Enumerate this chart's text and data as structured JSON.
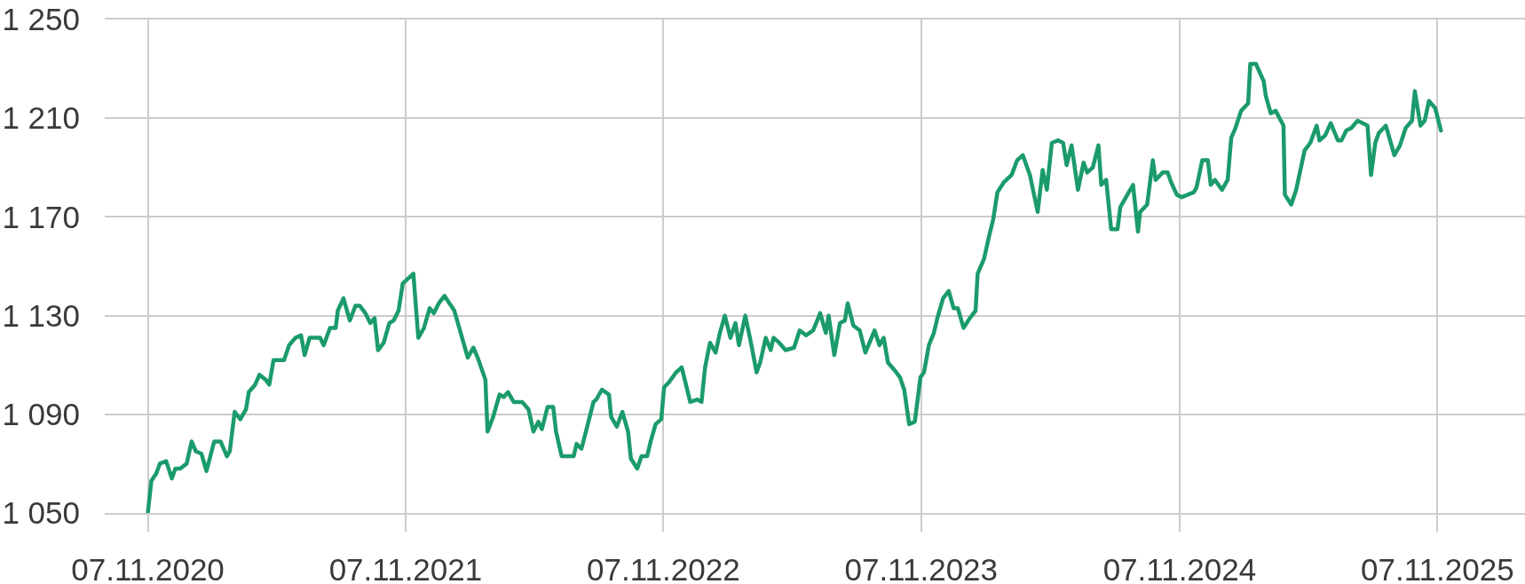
{
  "chart_data": {
    "type": "line",
    "x": [
      "2020-11-07",
      "2020-11-12",
      "2020-11-19",
      "2020-11-24",
      "2020-12-03",
      "2020-12-11",
      "2020-12-16",
      "2020-12-23",
      "2021-01-01",
      "2021-01-08",
      "2021-01-14",
      "2021-01-22",
      "2021-01-29",
      "2021-02-09",
      "2021-02-18",
      "2021-02-27",
      "2021-03-03",
      "2021-03-10",
      "2021-03-18",
      "2021-03-26",
      "2021-03-30",
      "2021-04-08",
      "2021-04-14",
      "2021-04-23",
      "2021-04-28",
      "2021-05-04",
      "2021-05-19",
      "2021-05-26",
      "2021-06-04",
      "2021-06-12",
      "2021-06-17",
      "2021-06-24",
      "2021-07-09",
      "2021-07-14",
      "2021-07-23",
      "2021-07-31",
      "2021-08-03",
      "2021-08-11",
      "2021-08-20",
      "2021-08-28",
      "2021-09-03",
      "2021-09-11",
      "2021-09-18",
      "2021-09-24",
      "2021-09-29",
      "2021-10-07",
      "2021-10-15",
      "2021-10-21",
      "2021-10-28",
      "2021-11-03",
      "2021-11-18",
      "2021-11-25",
      "2021-12-03",
      "2021-12-11",
      "2021-12-17",
      "2021-12-24",
      "2022-01-01",
      "2022-01-15",
      "2022-01-26",
      "2022-02-03",
      "2022-02-11",
      "2022-02-17",
      "2022-02-28",
      "2022-03-03",
      "2022-03-11",
      "2022-03-20",
      "2022-03-26",
      "2022-04-01",
      "2022-04-09",
      "2022-04-15",
      "2022-04-21",
      "2022-04-30",
      "2022-05-07",
      "2022-05-14",
      "2022-05-19",
      "2022-05-27",
      "2022-06-04",
      "2022-06-08",
      "2022-06-16",
      "2022-07-03",
      "2022-07-07",
      "2022-07-14",
      "2022-07-23",
      "2022-07-31",
      "2022-08-04",
      "2022-08-12",
      "2022-08-22",
      "2022-08-25",
      "2022-09-02",
      "2022-09-10",
      "2022-09-18",
      "2022-09-22",
      "2022-10-01",
      "2022-10-07",
      "2022-10-15",
      "2022-10-20",
      "2022-10-27",
      "2022-11-04",
      "2022-11-08",
      "2022-11-15",
      "2022-11-25",
      "2022-12-03",
      "2022-12-15",
      "2022-12-25",
      "2022-12-31",
      "2023-01-05",
      "2023-01-12",
      "2023-01-20",
      "2023-01-26",
      "2023-02-02",
      "2023-02-10",
      "2023-02-17",
      "2023-02-22",
      "2023-03-03",
      "2023-03-11",
      "2023-03-19",
      "2023-03-24",
      "2023-04-01",
      "2023-04-08",
      "2023-04-12",
      "2023-04-20",
      "2023-04-29",
      "2023-05-11",
      "2023-05-19",
      "2023-05-28",
      "2023-06-07",
      "2023-06-17",
      "2023-06-25",
      "2023-06-29",
      "2023-07-07",
      "2023-07-15",
      "2023-07-22",
      "2023-07-26",
      "2023-08-03",
      "2023-08-12",
      "2023-08-20",
      "2023-09-02",
      "2023-09-09",
      "2023-09-15",
      "2023-09-21",
      "2023-09-30",
      "2023-10-08",
      "2023-10-14",
      "2023-10-21",
      "2023-10-29",
      "2023-11-06",
      "2023-11-11",
      "2023-11-18",
      "2023-11-25",
      "2023-11-30",
      "2023-12-08",
      "2023-12-16",
      "2023-12-23",
      "2023-12-29",
      "2024-01-06",
      "2024-01-15",
      "2024-01-23",
      "2024-01-26",
      "2024-02-04",
      "2024-02-11",
      "2024-02-17",
      "2024-02-23",
      "2024-03-03",
      "2024-03-14",
      "2024-03-22",
      "2024-03-30",
      "2024-04-09",
      "2024-04-20",
      "2024-04-27",
      "2024-05-03",
      "2024-05-10",
      "2024-05-19",
      "2024-05-26",
      "2024-05-31",
      "2024-06-07",
      "2024-06-16",
      "2024-06-24",
      "2024-06-29",
      "2024-07-07",
      "2024-07-15",
      "2024-07-19",
      "2024-07-26",
      "2024-08-02",
      "2024-08-11",
      "2024-08-15",
      "2024-08-25",
      "2024-09-02",
      "2024-09-09",
      "2024-09-12",
      "2024-09-22",
      "2024-09-30",
      "2024-10-04",
      "2024-10-14",
      "2024-10-21",
      "2024-10-26",
      "2024-11-03",
      "2024-11-10",
      "2024-11-27",
      "2024-12-01",
      "2024-12-09",
      "2024-12-17",
      "2024-12-21",
      "2024-12-27",
      "2025-01-06",
      "2025-01-14",
      "2025-01-19",
      "2025-01-25",
      "2025-02-02",
      "2025-02-12",
      "2025-02-15",
      "2025-02-23",
      "2025-03-06",
      "2025-03-09",
      "2025-03-16",
      "2025-03-23",
      "2025-04-03",
      "2025-04-05",
      "2025-04-14",
      "2025-04-21",
      "2025-05-03",
      "2025-05-11",
      "2025-05-20",
      "2025-05-24",
      "2025-06-01",
      "2025-06-09",
      "2025-06-19",
      "2025-06-24",
      "2025-07-01",
      "2025-07-08",
      "2025-07-17",
      "2025-07-24",
      "2025-07-31",
      "2025-08-05",
      "2025-08-11",
      "2025-08-16",
      "2025-08-26",
      "2025-09-07",
      "2025-09-15",
      "2025-09-23",
      "2025-10-02",
      "2025-10-06",
      "2025-10-14",
      "2025-10-20",
      "2025-10-26",
      "2025-11-04",
      "2025-11-12"
    ],
    "series": [
      {
        "color": "#1b9b6b",
        "values": [
          1050,
          1063,
          1066,
          1070,
          1071,
          1064,
          1068,
          1068,
          1070,
          1079,
          1075,
          1074,
          1067,
          1079,
          1079,
          1073,
          1075,
          1091,
          1088,
          1092,
          1099,
          1102,
          1106,
          1104,
          1102,
          1112,
          1112,
          1118,
          1121,
          1122,
          1114,
          1121,
          1121,
          1118,
          1125,
          1125,
          1132,
          1137,
          1128,
          1134,
          1134,
          1131,
          1127,
          1129,
          1116,
          1119,
          1127,
          1128,
          1132,
          1143,
          1147,
          1121,
          1125,
          1133,
          1131,
          1135,
          1138,
          1132,
          1121,
          1113,
          1117,
          1113,
          1104,
          1083,
          1089,
          1098,
          1097,
          1099,
          1095,
          1095,
          1095,
          1092,
          1083,
          1087,
          1084,
          1093,
          1093,
          1083,
          1073,
          1073,
          1078,
          1076,
          1086,
          1095,
          1096,
          1100,
          1098,
          1089,
          1085,
          1091,
          1083,
          1072,
          1068,
          1073,
          1073,
          1079,
          1086,
          1088,
          1101,
          1103,
          1107,
          1109,
          1095,
          1096,
          1095,
          1109,
          1119,
          1115,
          1123,
          1130,
          1121,
          1127,
          1118,
          1130,
          1119,
          1107,
          1111,
          1121,
          1116,
          1121,
          1119,
          1116,
          1117,
          1124,
          1122,
          1124,
          1131,
          1123,
          1130,
          1114,
          1127,
          1128,
          1135,
          1126,
          1124,
          1115,
          1124,
          1118,
          1121,
          1111,
          1108,
          1105,
          1100,
          1086,
          1087,
          1105,
          1107,
          1118,
          1123,
          1129,
          1137,
          1140,
          1133,
          1133,
          1125,
          1129,
          1132,
          1147,
          1153,
          1162,
          1169,
          1180,
          1184,
          1187,
          1193,
          1195,
          1187,
          1172,
          1189,
          1181,
          1200,
          1201,
          1200,
          1191,
          1199,
          1181,
          1192,
          1188,
          1190,
          1199,
          1183,
          1185,
          1165,
          1165,
          1174,
          1179,
          1183,
          1164,
          1172,
          1175,
          1193,
          1185,
          1188,
          1188,
          1184,
          1179,
          1178,
          1180,
          1182,
          1193,
          1193,
          1183,
          1185,
          1181,
          1185,
          1202,
          1206,
          1213,
          1216,
          1232,
          1232,
          1225,
          1219,
          1212,
          1213,
          1207,
          1179,
          1175,
          1181,
          1197,
          1200,
          1207,
          1201,
          1203,
          1208,
          1201,
          1201,
          1205,
          1206,
          1209,
          1208,
          1207,
          1187,
          1200,
          1204,
          1207,
          1195,
          1199,
          1206,
          1209,
          1221,
          1207,
          1209,
          1217,
          1214,
          1205
        ]
      }
    ],
    "xlim": [
      "2020-09-07",
      "2026-03-11"
    ],
    "xticks": [
      {
        "value": "2020-11-07",
        "label": "07.11.2020"
      },
      {
        "value": "2021-11-07",
        "label": "07.11.2021"
      },
      {
        "value": "2022-11-07",
        "label": "07.11.2022"
      },
      {
        "value": "2023-11-07",
        "label": "07.11.2023"
      },
      {
        "value": "2024-11-07",
        "label": "07.11.2024"
      },
      {
        "value": "2025-11-07",
        "label": "07.11.2025"
      }
    ],
    "ylim": [
      1050,
      1250
    ],
    "yticks": [
      {
        "value": 1050,
        "label": "1 050"
      },
      {
        "value": 1090,
        "label": "1 090"
      },
      {
        "value": 1130,
        "label": "1 130"
      },
      {
        "value": 1170,
        "label": "1 170"
      },
      {
        "value": 1210,
        "label": "1 210"
      },
      {
        "value": 1250,
        "label": "1 250"
      }
    ],
    "grid": true,
    "line_style": "solid"
  }
}
